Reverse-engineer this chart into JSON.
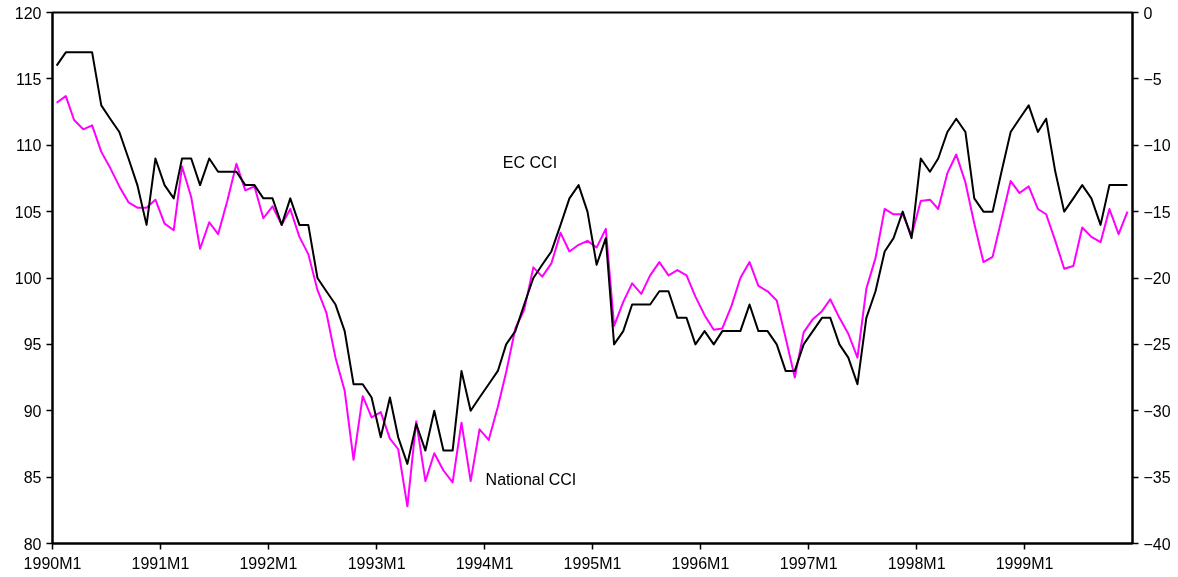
{
  "chart_data": {
    "type": "line",
    "x": [
      "1990-01-15",
      "1990-02-15",
      "1990-03-15",
      "1990-04-15",
      "1990-05-15",
      "1990-06-15",
      "1990-07-15",
      "1990-08-15",
      "1990-09-15",
      "1990-10-15",
      "1990-11-15",
      "1990-12-15",
      "1991-01-15",
      "1991-02-15",
      "1991-03-15",
      "1991-04-15",
      "1991-05-15",
      "1991-06-15",
      "1991-07-15",
      "1991-08-15",
      "1991-09-15",
      "1991-10-15",
      "1991-11-15",
      "1991-12-15",
      "1992-01-15",
      "1992-02-15",
      "1992-03-15",
      "1992-04-15",
      "1992-05-15",
      "1992-06-15",
      "1992-07-15",
      "1992-08-15",
      "1992-09-15",
      "1992-10-15",
      "1992-11-15",
      "1992-12-15",
      "1993-01-15",
      "1993-02-15",
      "1993-03-15",
      "1993-04-15",
      "1993-05-15",
      "1993-06-15",
      "1993-07-15",
      "1993-08-15",
      "1993-09-15",
      "1993-10-15",
      "1993-11-15",
      "1993-12-15",
      "1994-01-15",
      "1994-02-15",
      "1994-03-15",
      "1994-04-15",
      "1994-05-15",
      "1994-06-15",
      "1994-07-15",
      "1994-08-15",
      "1994-09-15",
      "1994-10-15",
      "1994-11-15",
      "1994-12-15",
      "1995-01-15",
      "1995-02-15",
      "1995-03-15",
      "1995-04-15",
      "1995-05-15",
      "1995-06-15",
      "1995-07-15",
      "1995-08-15",
      "1995-09-15",
      "1995-10-15",
      "1995-11-15",
      "1995-12-15",
      "1996-01-15",
      "1996-02-15",
      "1996-03-15",
      "1996-04-15",
      "1996-05-15",
      "1996-06-15",
      "1996-07-15",
      "1996-08-15",
      "1996-09-15",
      "1996-10-15",
      "1996-11-15",
      "1996-12-15",
      "1997-01-15",
      "1997-02-15",
      "1997-03-15",
      "1997-04-15",
      "1997-05-15",
      "1997-06-15",
      "1997-07-15",
      "1997-08-15",
      "1997-09-15",
      "1997-10-15",
      "1997-11-15",
      "1997-12-15",
      "1998-01-15",
      "1998-02-15",
      "1998-03-15",
      "1998-04-15",
      "1998-05-15",
      "1998-06-15",
      "1998-07-15",
      "1998-08-15",
      "1998-09-15",
      "1998-10-15",
      "1998-11-15",
      "1998-12-15",
      "1999-01-15",
      "1999-02-15",
      "1999-03-15",
      "1999-04-15",
      "1999-05-15",
      "1999-06-15",
      "1999-07-15",
      "1999-08-15",
      "1999-09-15",
      "1999-10-15",
      "1999-11-15",
      "1999-12-15"
    ],
    "series": [
      {
        "color": "#ff00ff",
        "values": [
          113.2,
          113.7,
          111.9,
          111.2,
          111.5,
          109.5,
          108.3,
          106.9,
          105.7,
          105.3,
          105.3,
          105.9,
          104.1,
          103.6,
          108.4,
          106.1,
          102.2,
          104.2,
          103.3,
          105.8,
          108.6,
          106.6,
          106.9,
          104.5,
          105.4,
          104.0,
          105.2,
          103.1,
          101.8,
          99.1,
          97.4,
          94.0,
          91.5,
          86.3,
          91.1,
          89.5,
          89.9,
          87.9,
          87.1,
          82.8,
          89.2,
          84.7,
          86.8,
          85.5,
          84.6,
          89.1,
          84.7,
          88.6,
          87.8,
          90.3,
          92.9,
          96.2,
          97.6,
          100.8,
          100.1,
          101.1,
          103.4,
          102.0,
          102.5,
          102.8,
          102.3,
          103.7,
          96.4,
          98.2,
          99.6,
          98.8,
          100.2,
          101.2,
          100.2,
          100.6,
          100.2,
          98.6,
          97.2,
          96.1,
          96.2,
          97.9,
          100.0,
          101.2,
          99.4,
          99.0,
          98.3,
          95.5,
          92.5,
          95.9,
          96.9,
          97.5,
          98.4,
          97.0,
          95.8,
          94.0,
          99.2,
          101.5,
          105.2,
          104.8,
          104.8,
          103.2,
          105.8,
          105.9,
          105.2,
          107.9,
          109.3,
          107.2,
          104.1,
          101.2,
          101.6,
          104.4,
          107.3,
          106.4,
          106.9,
          105.2,
          104.8,
          102.8,
          100.7,
          100.9,
          103.8,
          103.1,
          102.7,
          105.2,
          103.3,
          105.0
        ]
      },
      {
        "color": "#000000",
        "axis": "y2",
        "values": [
          -4,
          -3,
          -3,
          -3,
          -3,
          -7,
          -8,
          -9,
          -11,
          -13,
          -16,
          -11,
          -13,
          -14,
          -11,
          -11,
          -13,
          -11,
          -12,
          -12,
          -12,
          -13,
          -13,
          -14,
          -14,
          -16,
          -14,
          -16,
          -16,
          -20,
          -21,
          -22,
          -24,
          -28,
          -28,
          -29,
          -32,
          -29,
          -32,
          -34,
          -31,
          -33,
          -30,
          -33,
          -33,
          -27,
          -30,
          -29,
          -28,
          -27,
          -25,
          -24,
          -22,
          -20,
          -19,
          -18,
          -16,
          -14,
          -13,
          -15,
          -19,
          -17,
          -25,
          -24,
          -22,
          -22,
          -22,
          -21,
          -21,
          -23,
          -23,
          -25,
          -24,
          -25,
          -24,
          -24,
          -24,
          -22,
          -24,
          -24,
          -25,
          -27,
          -27,
          -25,
          -24,
          -23,
          -23,
          -25,
          -26,
          -28,
          -23,
          -21,
          -18,
          -17,
          -15,
          -17,
          -11,
          -12,
          -11,
          -9,
          -8,
          -9,
          -14,
          -15,
          -15,
          -12,
          -9,
          -8,
          -7,
          -9,
          -8,
          -12,
          -15,
          -14,
          -13,
          -14,
          -16,
          -13,
          -13,
          -13
        ]
      }
    ],
    "annotations": [
      "EC CCI",
      "National CCI"
    ],
    "xlim": [
      "1990-01-01",
      "2000-01-01"
    ],
    "xticks": [
      {
        "value": "1990-01-01",
        "label": "1990M1"
      },
      {
        "value": "1991-01-01",
        "label": "1991M1"
      },
      {
        "value": "1992-01-01",
        "label": "1992M1"
      },
      {
        "value": "1993-01-01",
        "label": "1993M1"
      },
      {
        "value": "1994-01-01",
        "label": "1994M1"
      },
      {
        "value": "1995-01-01",
        "label": "1995M1"
      },
      {
        "value": "1996-01-01",
        "label": "1996M1"
      },
      {
        "value": "1997-01-01",
        "label": "1997M1"
      },
      {
        "value": "1998-01-01",
        "label": "1998M1"
      },
      {
        "value": "1999-01-01",
        "label": "1999M1"
      }
    ],
    "ylim": [
      80,
      120
    ],
    "yticks": [
      80,
      85,
      90,
      95,
      100,
      105,
      110,
      115,
      120
    ],
    "y2lim": [
      -40,
      0
    ],
    "y2ticks": [
      -40,
      -35,
      -30,
      -25,
      -20,
      -15,
      -10,
      -5,
      0
    ],
    "grid": false,
    "marker": "none",
    "line_style": "solid"
  }
}
